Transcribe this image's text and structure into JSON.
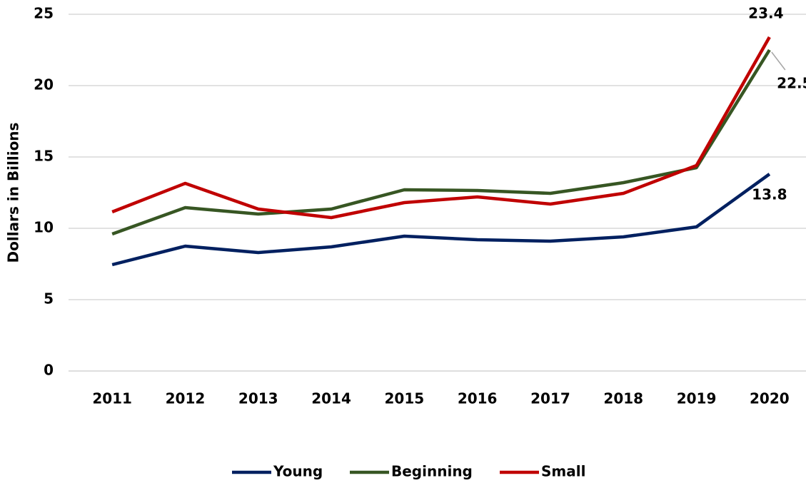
{
  "chart_data": {
    "type": "line",
    "y_label": "Dollars in Billions",
    "categories": [
      "2011",
      "2012",
      "2013",
      "2014",
      "2015",
      "2016",
      "2017",
      "2018",
      "2019",
      "2020"
    ],
    "series": [
      {
        "name": "Young",
        "color": "#002060",
        "values": [
          7.45,
          8.75,
          8.3,
          8.7,
          9.45,
          9.2,
          9.1,
          9.4,
          10.1,
          13.8
        ]
      },
      {
        "name": "Beginning",
        "color": "#375623",
        "values": [
          9.6,
          11.45,
          11.0,
          11.35,
          12.7,
          12.65,
          12.45,
          13.2,
          14.25,
          22.5
        ]
      },
      {
        "name": "Small",
        "color": "#c00000",
        "values": [
          11.15,
          13.15,
          11.35,
          10.75,
          11.8,
          12.2,
          11.7,
          12.45,
          14.4,
          23.4
        ]
      }
    ],
    "ylim": [
      0,
      25
    ],
    "yticks": [
      0,
      5,
      10,
      15,
      20,
      25
    ],
    "grid": true,
    "legend": "bottom"
  }
}
